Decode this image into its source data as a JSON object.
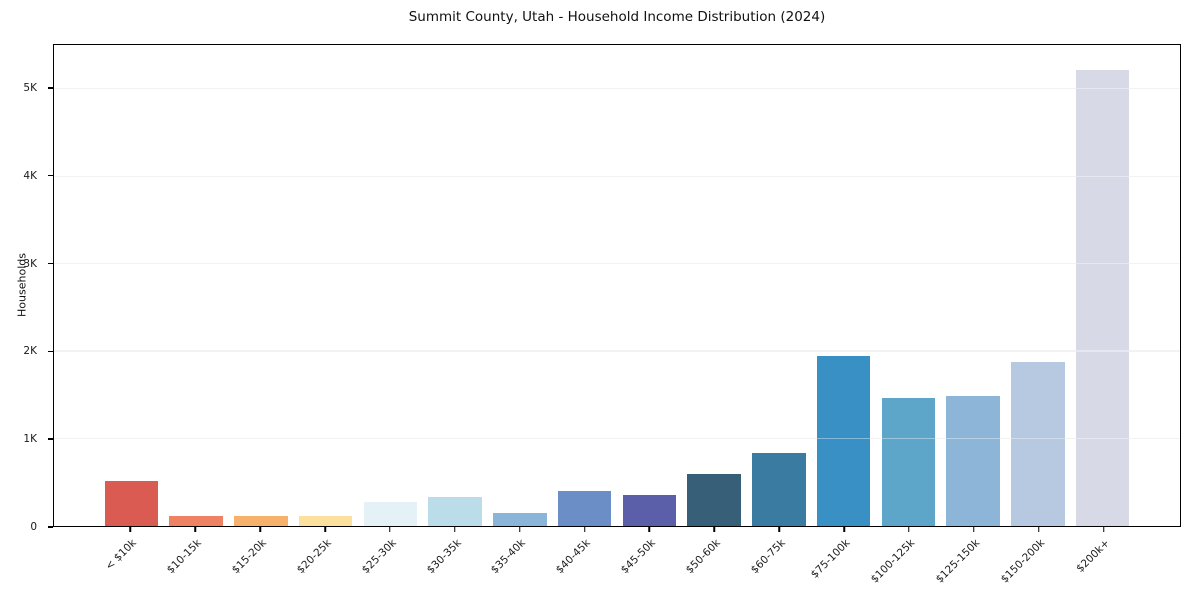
{
  "chart_data": {
    "type": "bar",
    "title": "Summit County, Utah - Household Income Distribution (2024)",
    "xlabel": "",
    "ylabel": "Households",
    "categories": [
      "< $10k",
      "$10-15k",
      "$15-20k",
      "$20-25k",
      "$25-30k",
      "$30-35k",
      "$35-40k",
      "$40-45k",
      "$45-50k",
      "$50-60k",
      "$60-75k",
      "$75-100k",
      "$100-125k",
      "$125-150k",
      "$150-200k",
      "$200k+"
    ],
    "values": [
      515,
      115,
      115,
      120,
      280,
      335,
      150,
      400,
      350,
      590,
      830,
      1940,
      1460,
      1485,
      1880,
      5210
    ],
    "colors": [
      "#d95b52",
      "#ef8262",
      "#f6b16c",
      "#fce19e",
      "#e4f1f6",
      "#badde9",
      "#8ab4d8",
      "#6b8ec6",
      "#5b5ea8",
      "#375f78",
      "#3a7ba1",
      "#3890c5",
      "#5ea5ca",
      "#8db5d8",
      "#b7c9e0",
      "#d7d9e7"
    ],
    "ylim": [
      0,
      5500
    ],
    "yticks": [
      {
        "value": 0,
        "label": "0"
      },
      {
        "value": 1000,
        "label": "1K"
      },
      {
        "value": 2000,
        "label": "2K"
      },
      {
        "value": 3000,
        "label": "3K"
      },
      {
        "value": 4000,
        "label": "4K"
      },
      {
        "value": 5000,
        "label": "5K"
      }
    ],
    "grid": "horizontal",
    "legend": "none"
  }
}
